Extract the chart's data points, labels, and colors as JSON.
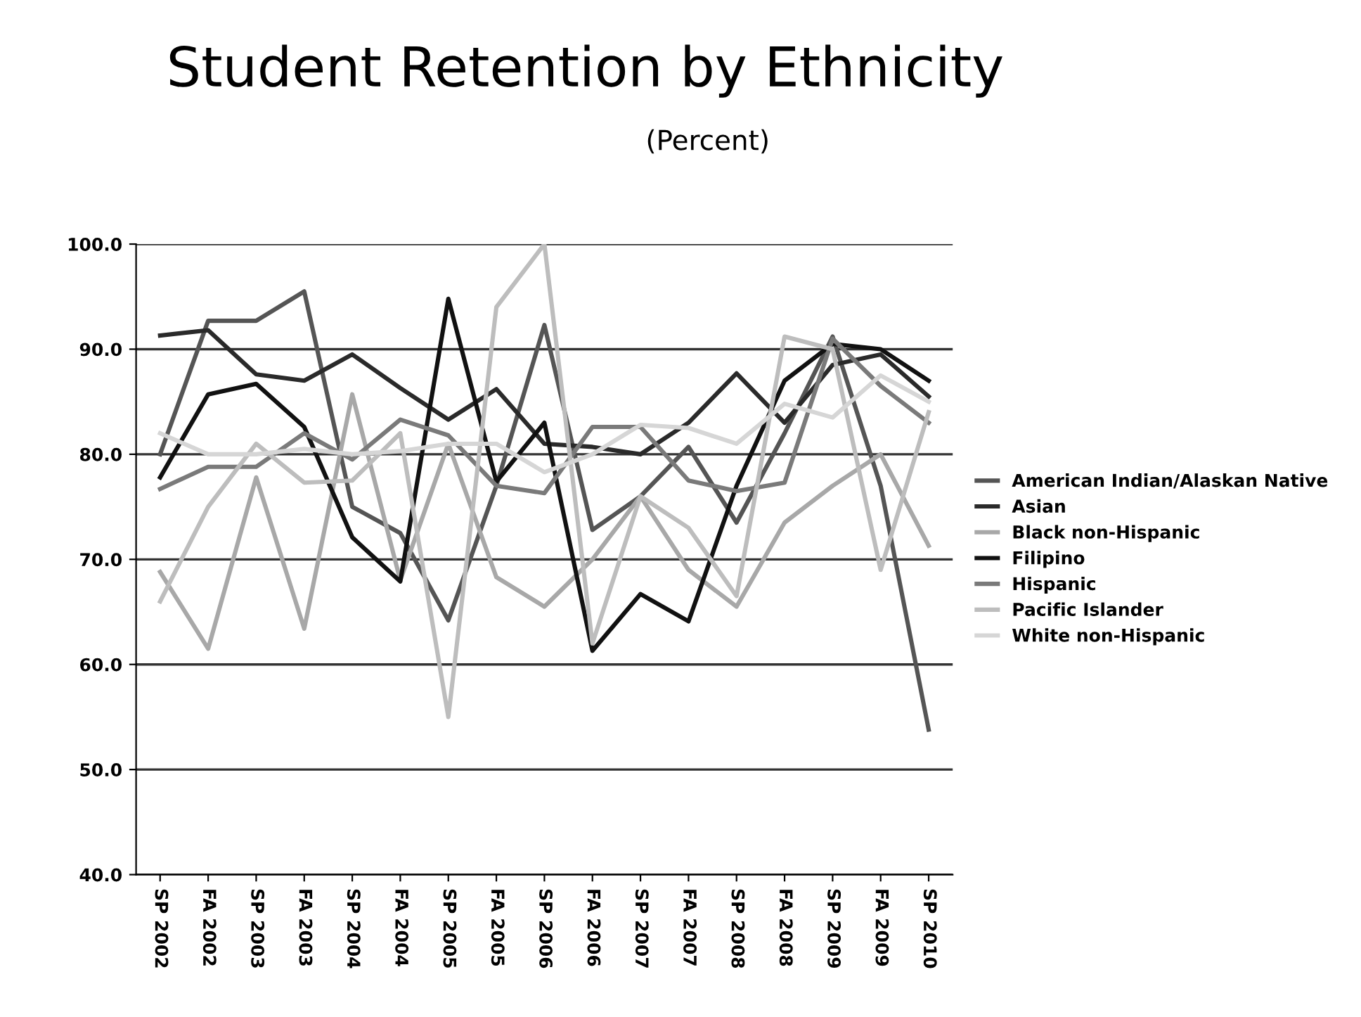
{
  "chart_data": {
    "type": "line",
    "title": "Student Retention by Ethnicity",
    "subtitle": "(Percent)",
    "categories": [
      "SP 2002",
      "FA 2002",
      "SP 2003",
      "FA 2003",
      "SP 2004",
      "FA 2004",
      "SP 2005",
      "FA 2005",
      "SP 2006",
      "FA 2006",
      "SP 2007",
      "FA 2007",
      "SP 2008",
      "FA 2008",
      "SP 2009",
      "FA 2009",
      "SP 2010"
    ],
    "series": [
      {
        "name": "American Indian/Alaskan Native",
        "color": "#555555",
        "values": [
          80.0,
          92.7,
          92.7,
          95.5,
          75.0,
          72.5,
          64.2,
          77.0,
          92.3,
          72.8,
          76.0,
          80.7,
          73.5,
          82.0,
          91.2,
          77.0,
          53.8
        ]
      },
      {
        "name": "Asian",
        "color": "#2a2a2a",
        "values": [
          91.3,
          91.8,
          87.6,
          87.0,
          89.5,
          86.3,
          83.3,
          86.2,
          81.0,
          80.7,
          80.0,
          83.0,
          87.7,
          83.0,
          88.5,
          89.5,
          85.5
        ]
      },
      {
        "name": "Black non-Hispanic",
        "color": "#a8a8a8",
        "values": [
          68.8,
          61.5,
          77.8,
          63.4,
          85.7,
          68.0,
          81.0,
          68.3,
          65.5,
          70.0,
          76.0,
          69.0,
          65.5,
          73.5,
          77.0,
          80.0,
          71.3
        ]
      },
      {
        "name": "Filipino",
        "color": "#111111",
        "values": [
          77.8,
          85.7,
          86.7,
          82.6,
          72.1,
          67.9,
          94.8,
          77.4,
          83.0,
          61.3,
          66.7,
          64.1,
          77.0,
          87.0,
          90.5,
          90.0,
          87.0
        ]
      },
      {
        "name": "Hispanic",
        "color": "#7a7a7a",
        "values": [
          76.7,
          78.8,
          78.8,
          82.0,
          79.5,
          83.3,
          81.8,
          77.0,
          76.3,
          82.6,
          82.6,
          77.5,
          76.5,
          77.3,
          91.0,
          86.5,
          83.0
        ]
      },
      {
        "name": "Pacific Islander",
        "color": "#bdbdbd",
        "values": [
          66.0,
          75.0,
          81.0,
          77.3,
          77.5,
          82.0,
          55.0,
          94.0,
          100.0,
          62.0,
          76.0,
          73.0,
          66.5,
          91.2,
          90.0,
          69.0,
          84.0
        ]
      },
      {
        "name": "White non-Hispanic",
        "color": "#d6d6d6",
        "values": [
          82.0,
          80.0,
          80.0,
          80.5,
          80.0,
          80.3,
          81.0,
          81.0,
          78.3,
          80.0,
          82.8,
          82.5,
          81.0,
          84.8,
          83.5,
          87.5,
          85.0
        ]
      }
    ],
    "ylim": [
      40,
      100
    ],
    "yticks": [
      {
        "value": 40,
        "label": "40.0"
      },
      {
        "value": 50,
        "label": "50.0"
      },
      {
        "value": 60,
        "label": "60.0"
      },
      {
        "value": 70,
        "label": "70.0"
      },
      {
        "value": 80,
        "label": "80.0"
      },
      {
        "value": 90,
        "label": "90.0"
      },
      {
        "value": 100,
        "label": "100.0"
      }
    ],
    "grid": "y",
    "legend": "right",
    "marker": "none",
    "line_style": "solid"
  }
}
